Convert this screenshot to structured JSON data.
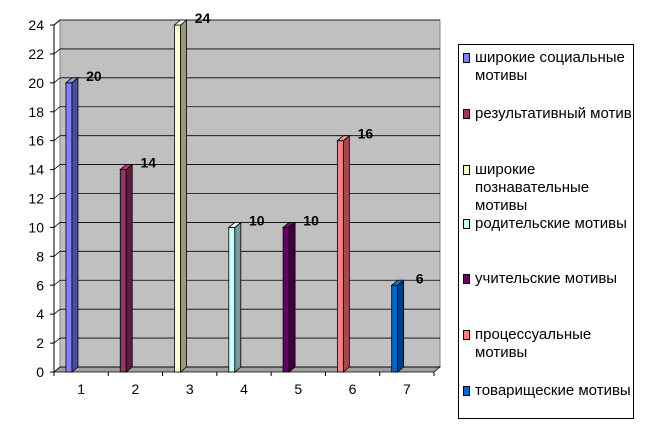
{
  "chart_data": {
    "type": "bar",
    "style": "3d-column",
    "categories": [
      "1",
      "2",
      "3",
      "4",
      "5",
      "6",
      "7"
    ],
    "values": [
      20,
      14,
      24,
      10,
      10,
      16,
      6
    ],
    "data_labels": [
      "20",
      "14",
      "24",
      "10",
      "10",
      "16",
      "6"
    ],
    "colors": [
      "#8080FF",
      "#993366",
      "#FFFFCC",
      "#CCFFFF",
      "#660066",
      "#FF8080",
      "#0066CC"
    ],
    "series_names": [
      "широкие социальные мотивы",
      "результативный мотив",
      "широкие познавательные мотивы",
      "родительские мотивы",
      "учительские мотивы",
      "процессуальные мотивы",
      "товарищеские мотивы"
    ],
    "ylim": [
      0,
      24
    ],
    "y_ticks": [
      "0",
      "2",
      "4",
      "6",
      "8",
      "10",
      "12",
      "14",
      "16",
      "18",
      "20",
      "22",
      "24"
    ],
    "grid": true,
    "plot_background": "#C0C0C0",
    "legend_position": "right",
    "title": "",
    "xlabel": "",
    "ylabel": ""
  }
}
